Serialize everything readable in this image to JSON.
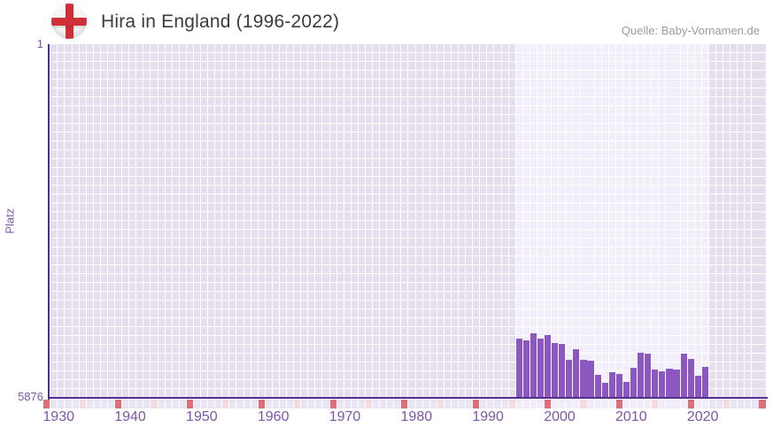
{
  "header": {
    "title": "Hira in England (1996-2022)",
    "source": "Quelle: Baby-Vornamen.de",
    "flag_icon": "england-flag-icon"
  },
  "colors": {
    "bar": "#8c57c0",
    "axis_line": "#552d90",
    "grid_cell": "#e4deef",
    "grid_cell_highlight": "#f3effa",
    "grid_line": "#ffffff",
    "strip_cell": "#eae5f3",
    "strip_cell_highlight": "#f2eef9",
    "strip_half_decade": "#f5dbe2",
    "strip_decade": "#e06e7a",
    "tick_text": "#7e55a9",
    "title_text": "#3b3b3b",
    "source_text": "#9c9c9c",
    "flag_red": "#d02f3a"
  },
  "chart_data": {
    "type": "bar",
    "title": "Hira in England (1996-2022)",
    "xlabel": "",
    "ylabel": "Platz",
    "y_axis": {
      "min": 1,
      "max": 5876,
      "inverted": true,
      "ticks": [
        "1",
        "5876"
      ]
    },
    "x_range": [
      1930,
      2030
    ],
    "x_ticks": [
      1930,
      1940,
      1950,
      1960,
      1970,
      1980,
      1990,
      2000,
      2010,
      2020
    ],
    "highlight_years": [
      1996,
      2022
    ],
    "categories": [
      1996,
      1997,
      1998,
      1999,
      2000,
      2001,
      2002,
      2003,
      2004,
      2005,
      2006,
      2007,
      2008,
      2009,
      2010,
      2011,
      2012,
      2013,
      2014,
      2015,
      2016,
      2017,
      2018,
      2019,
      2020,
      2021,
      2022
    ],
    "values": [
      4888,
      4917,
      4808,
      4897,
      4829,
      4965,
      4980,
      5249,
      5063,
      5245,
      5264,
      5495,
      5631,
      5456,
      5480,
      5613,
      5377,
      5127,
      5142,
      5406,
      5436,
      5387,
      5406,
      5142,
      5234,
      5505,
      5363
    ]
  }
}
